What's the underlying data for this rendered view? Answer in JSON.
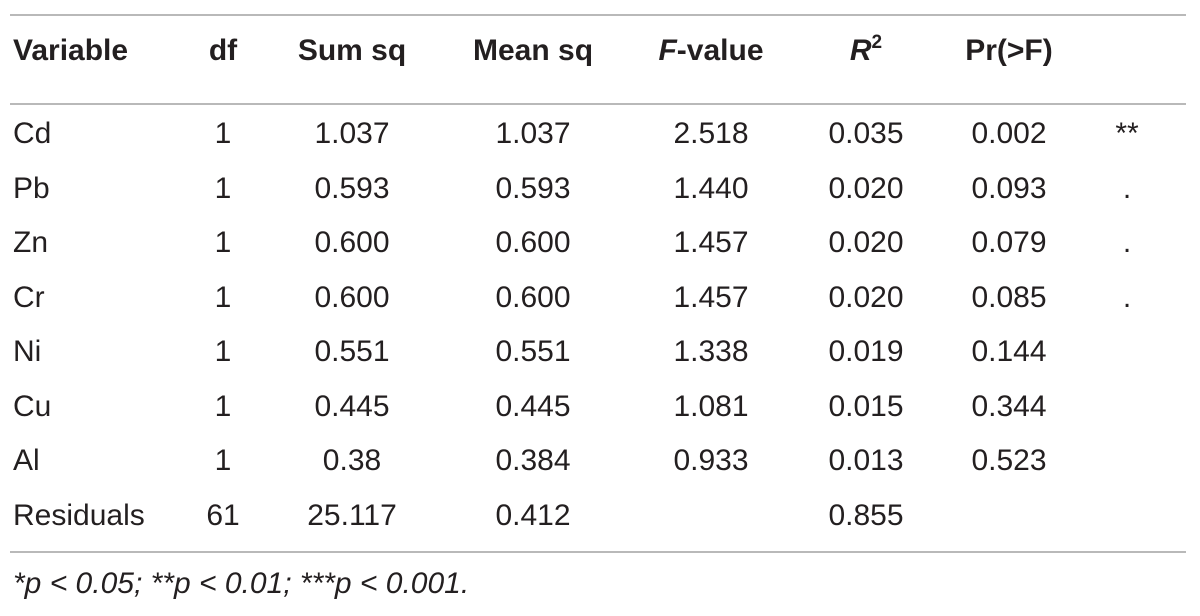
{
  "table": {
    "headers": {
      "variable": "Variable",
      "df": "df",
      "sum_sq": "Sum sq",
      "mean_sq": "Mean sq",
      "f_value_symbol": "F",
      "f_value_suffix": "-value",
      "r2_symbol": "R",
      "r2_superscript": "2",
      "pr": "Pr(>F)"
    },
    "rows": [
      {
        "variable": "Cd",
        "df": "1",
        "sum_sq": "1.037",
        "mean_sq": "1.037",
        "f_value": "2.518",
        "r2": "0.035",
        "pr": "0.002",
        "sig": "**"
      },
      {
        "variable": "Pb",
        "df": "1",
        "sum_sq": "0.593",
        "mean_sq": "0.593",
        "f_value": "1.440",
        "r2": "0.020",
        "pr": "0.093",
        "sig": "."
      },
      {
        "variable": "Zn",
        "df": "1",
        "sum_sq": "0.600",
        "mean_sq": "0.600",
        "f_value": "1.457",
        "r2": "0.020",
        "pr": "0.079",
        "sig": "."
      },
      {
        "variable": "Cr",
        "df": "1",
        "sum_sq": "0.600",
        "mean_sq": "0.600",
        "f_value": "1.457",
        "r2": "0.020",
        "pr": "0.085",
        "sig": "."
      },
      {
        "variable": "Ni",
        "df": "1",
        "sum_sq": "0.551",
        "mean_sq": "0.551",
        "f_value": "1.338",
        "r2": "0.019",
        "pr": "0.144",
        "sig": ""
      },
      {
        "variable": "Cu",
        "df": "1",
        "sum_sq": "0.445",
        "mean_sq": "0.445",
        "f_value": "1.081",
        "r2": "0.015",
        "pr": "0.344",
        "sig": ""
      },
      {
        "variable": "Al",
        "df": "1",
        "sum_sq": "0.38",
        "mean_sq": "0.384",
        "f_value": "0.933",
        "r2": "0.013",
        "pr": "0.523",
        "sig": ""
      },
      {
        "variable": "Residuals",
        "df": "61",
        "sum_sq": "25.117",
        "mean_sq": "0.412",
        "f_value": "",
        "r2": "0.855",
        "pr": "",
        "sig": ""
      }
    ]
  },
  "footnote": "*p < 0.05; **p < 0.01; ***p < 0.001.",
  "colors": {
    "text": "#231f20",
    "rule": "#b9b9b9",
    "background": "#ffffff"
  }
}
